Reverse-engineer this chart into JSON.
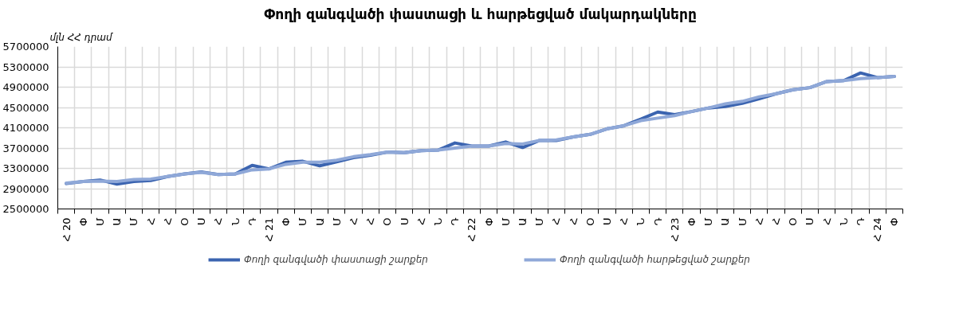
{
  "chart_data": {
    "type": "line",
    "title": "Փողի զանգվածի փաստացի և հարթեցված մակարդակները",
    "ylabel": "մլն ՀՀ դրամ",
    "categories": [
      "Հ 20",
      "Փ",
      "Մ",
      "Ա",
      "Մ",
      "Հ",
      "Հ",
      "Օ",
      "Ս",
      "Հ",
      "Ն",
      "Դ",
      "Հ 21",
      "Փ",
      "Մ",
      "Ա",
      "Մ",
      "Հ",
      "Հ",
      "Օ",
      "Ս",
      "Հ",
      "Ն",
      "Դ",
      "Հ 22",
      "Փ",
      "Մ",
      "Ա",
      "Մ",
      "Հ",
      "Հ",
      "Օ",
      "Ս",
      "Հ",
      "Ն",
      "Դ",
      "Հ 23",
      "Փ",
      "Մ",
      "Ա",
      "Մ",
      "Հ",
      "Հ",
      "Օ",
      "Ս",
      "Հ",
      "Ն",
      "Դ",
      "Հ 24",
      "Փ"
    ],
    "series": [
      {
        "name": "Փողի զանգվածի փաստացի շարքեր",
        "color": "#3b64b0",
        "values": [
          3000000,
          3040000,
          3070000,
          2990000,
          3040000,
          3060000,
          3140000,
          3190000,
          3230000,
          3180000,
          3190000,
          3360000,
          3290000,
          3420000,
          3440000,
          3350000,
          3430000,
          3510000,
          3560000,
          3620000,
          3610000,
          3650000,
          3660000,
          3800000,
          3740000,
          3740000,
          3820000,
          3710000,
          3850000,
          3850000,
          3920000,
          3970000,
          4080000,
          4140000,
          4270000,
          4410000,
          4360000,
          4420000,
          4490000,
          4520000,
          4580000,
          4670000,
          4770000,
          4850000,
          4890000,
          5010000,
          5030000,
          5180000,
          5090000,
          5110000
        ]
      },
      {
        "name": "Փողի զանգվածի հարթեցված շարքեր",
        "color": "#8fa8d8",
        "values": [
          3010000,
          3040000,
          3050000,
          3040000,
          3080000,
          3090000,
          3140000,
          3190000,
          3220000,
          3180000,
          3190000,
          3270000,
          3290000,
          3380000,
          3420000,
          3420000,
          3460000,
          3530000,
          3570000,
          3620000,
          3610000,
          3650000,
          3660000,
          3700000,
          3740000,
          3740000,
          3790000,
          3780000,
          3850000,
          3860000,
          3920000,
          3970000,
          4080000,
          4140000,
          4240000,
          4290000,
          4340000,
          4420000,
          4490000,
          4570000,
          4620000,
          4710000,
          4770000,
          4850000,
          4890000,
          5010000,
          5030000,
          5070000,
          5090000,
          5110000
        ]
      }
    ],
    "ylim": [
      2500000,
      5700000
    ],
    "yticks": [
      2500000,
      2900000,
      3300000,
      3700000,
      4100000,
      4500000,
      4900000,
      5300000,
      5700000
    ],
    "grid": true,
    "legend": "bottom",
    "line_style": "solid",
    "marker": "none"
  }
}
